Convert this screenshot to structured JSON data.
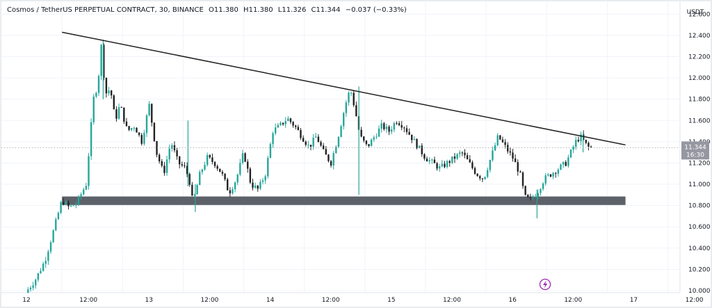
{
  "legend": {
    "symbol": "Cosmos / TetherUS PERPETUAL CONTRACT, 30, BINANCE",
    "o_label": "O",
    "o_value": "11.380",
    "h_label": "H",
    "h_value": "11.380",
    "l_label": "L",
    "l_value": "11.326",
    "c_label": "C",
    "c_value": "11.344",
    "change": "−0.037 (−0.33%)"
  },
  "currency": "USDT",
  "price_tag": {
    "value": "11.344",
    "countdown": "16:30"
  },
  "colors": {
    "up": "#26a69a",
    "down": "#222222",
    "trendline": "#1e1e1e",
    "zone": "#5d6169",
    "tag": "#9598a1"
  },
  "chart_data": {
    "type": "candlestick",
    "title": "",
    "interval": "30",
    "x_ticks": [
      "12",
      "12:00",
      "13",
      "12:00",
      "14",
      "12:00",
      "15",
      "12:00",
      "16",
      "12:00",
      "17",
      "12:00"
    ],
    "y_ticks": [
      "12.600",
      "12.400",
      "12.200",
      "12.000",
      "11.800",
      "11.600",
      "11.400",
      "11.200",
      "11.000",
      "10.800",
      "10.600",
      "10.400",
      "10.200",
      "10.000"
    ],
    "ylim": [
      9.98,
      12.72
    ],
    "x_range_days": [
      12.0,
      17.6
    ],
    "last_price": 11.344,
    "trendline": {
      "start": {
        "day": 12.5,
        "price": 12.43
      },
      "end": {
        "day": 17.15,
        "price": 11.37
      }
    },
    "support_zone": {
      "start_day": 12.5,
      "end_day": 17.15,
      "top": 10.885,
      "bottom": 10.805
    },
    "price_path": [
      [
        12.22,
        9.98
      ],
      [
        12.3,
        10.1
      ],
      [
        12.38,
        10.28
      ],
      [
        12.46,
        10.6
      ],
      [
        12.52,
        10.85
      ],
      [
        12.58,
        10.78
      ],
      [
        12.64,
        10.82
      ],
      [
        12.72,
        11.0
      ],
      [
        12.78,
        11.8
      ],
      [
        12.82,
        11.95
      ],
      [
        12.84,
        12.36
      ],
      [
        12.88,
        11.85
      ],
      [
        12.92,
        11.9
      ],
      [
        12.96,
        11.6
      ],
      [
        13.0,
        11.75
      ],
      [
        13.06,
        11.5
      ],
      [
        13.12,
        11.55
      ],
      [
        13.18,
        11.4
      ],
      [
        13.24,
        11.75
      ],
      [
        13.3,
        11.3
      ],
      [
        13.36,
        11.1
      ],
      [
        13.42,
        11.4
      ],
      [
        13.48,
        11.2
      ],
      [
        13.54,
        11.15
      ],
      [
        13.58,
        11.0
      ],
      [
        13.6,
        10.82
      ],
      [
        13.66,
        11.1
      ],
      [
        13.72,
        11.25
      ],
      [
        13.78,
        11.2
      ],
      [
        13.84,
        11.1
      ],
      [
        13.9,
        10.92
      ],
      [
        13.96,
        11.05
      ],
      [
        14.02,
        11.3
      ],
      [
        14.08,
        11.0
      ],
      [
        14.14,
        10.95
      ],
      [
        14.2,
        11.1
      ],
      [
        14.26,
        11.5
      ],
      [
        14.32,
        11.55
      ],
      [
        14.38,
        11.62
      ],
      [
        14.44,
        11.55
      ],
      [
        14.5,
        11.45
      ],
      [
        14.56,
        11.35
      ],
      [
        14.62,
        11.45
      ],
      [
        14.68,
        11.3
      ],
      [
        14.74,
        11.2
      ],
      [
        14.8,
        11.45
      ],
      [
        14.86,
        11.75
      ],
      [
        14.9,
        11.9
      ],
      [
        14.94,
        11.7
      ],
      [
        14.98,
        11.45
      ],
      [
        15.04,
        11.35
      ],
      [
        15.1,
        11.45
      ],
      [
        15.16,
        11.55
      ],
      [
        15.22,
        11.5
      ],
      [
        15.28,
        11.6
      ],
      [
        15.34,
        11.55
      ],
      [
        15.4,
        11.45
      ],
      [
        15.46,
        11.35
      ],
      [
        15.52,
        11.25
      ],
      [
        15.58,
        11.2
      ],
      [
        15.64,
        11.15
      ],
      [
        15.7,
        11.2
      ],
      [
        15.76,
        11.25
      ],
      [
        15.82,
        11.3
      ],
      [
        15.88,
        11.2
      ],
      [
        15.94,
        11.1
      ],
      [
        16.0,
        11.05
      ],
      [
        16.06,
        11.25
      ],
      [
        16.12,
        11.45
      ],
      [
        16.18,
        11.35
      ],
      [
        16.24,
        11.25
      ],
      [
        16.3,
        11.1
      ],
      [
        16.34,
        10.88
      ],
      [
        16.38,
        10.85
      ],
      [
        16.44,
        10.92
      ],
      [
        16.5,
        11.05
      ],
      [
        16.56,
        11.1
      ],
      [
        16.62,
        11.15
      ],
      [
        16.68,
        11.2
      ],
      [
        16.72,
        11.3
      ],
      [
        16.76,
        11.4
      ],
      [
        16.8,
        11.45
      ],
      [
        16.84,
        11.38
      ],
      [
        16.87,
        11.344
      ]
    ],
    "spikes": [
      {
        "day": 12.84,
        "high": 12.36,
        "low": 11.8
      },
      {
        "day": 13.54,
        "high": 11.6,
        "low": 10.98
      },
      {
        "day": 13.6,
        "high": 11.0,
        "low": 10.74
      },
      {
        "day": 14.95,
        "high": 11.92,
        "low": 10.9
      },
      {
        "day": 16.42,
        "high": 10.95,
        "low": 10.68
      },
      {
        "day": 16.8,
        "high": 11.48,
        "low": 11.3
      }
    ]
  },
  "bolt_icon": "lightning-icon"
}
